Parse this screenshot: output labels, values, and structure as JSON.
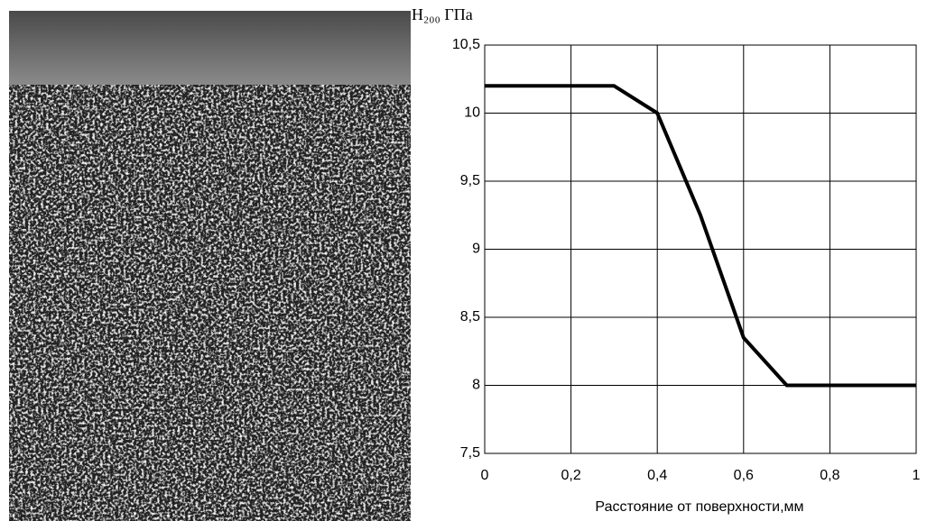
{
  "chart_data": {
    "type": "line",
    "y_label": "H₂₀₀ ГПа",
    "x_label": "Расстояние от поверхности,мм",
    "x": [
      0,
      0.1,
      0.2,
      0.3,
      0.4,
      0.5,
      0.6,
      0.7,
      0.8,
      0.9,
      1
    ],
    "series": [
      {
        "color": "#000000",
        "values": [
          10.2,
          10.2,
          10.2,
          10.2,
          10.0,
          9.25,
          8.35,
          8.0,
          8.0,
          8.0,
          8.0
        ]
      }
    ],
    "xlim": [
      0,
      1
    ],
    "xticks": [
      0,
      {
        "value": 0.2,
        "label": "0,2"
      },
      {
        "value": 0.4,
        "label": "0,4"
      },
      {
        "value": 0.6,
        "label": "0,6"
      },
      {
        "value": 0.8,
        "label": "0,8"
      },
      1
    ],
    "ylim": [
      7.5,
      10.5
    ],
    "yticks": [
      {
        "value": 7.5,
        "label": "7,5"
      },
      8,
      {
        "value": 8.5,
        "label": "8,5"
      },
      9,
      {
        "value": 9.5,
        "label": "9,5"
      },
      10,
      {
        "value": 10.5,
        "label": "10,5"
      }
    ],
    "grid": true
  }
}
